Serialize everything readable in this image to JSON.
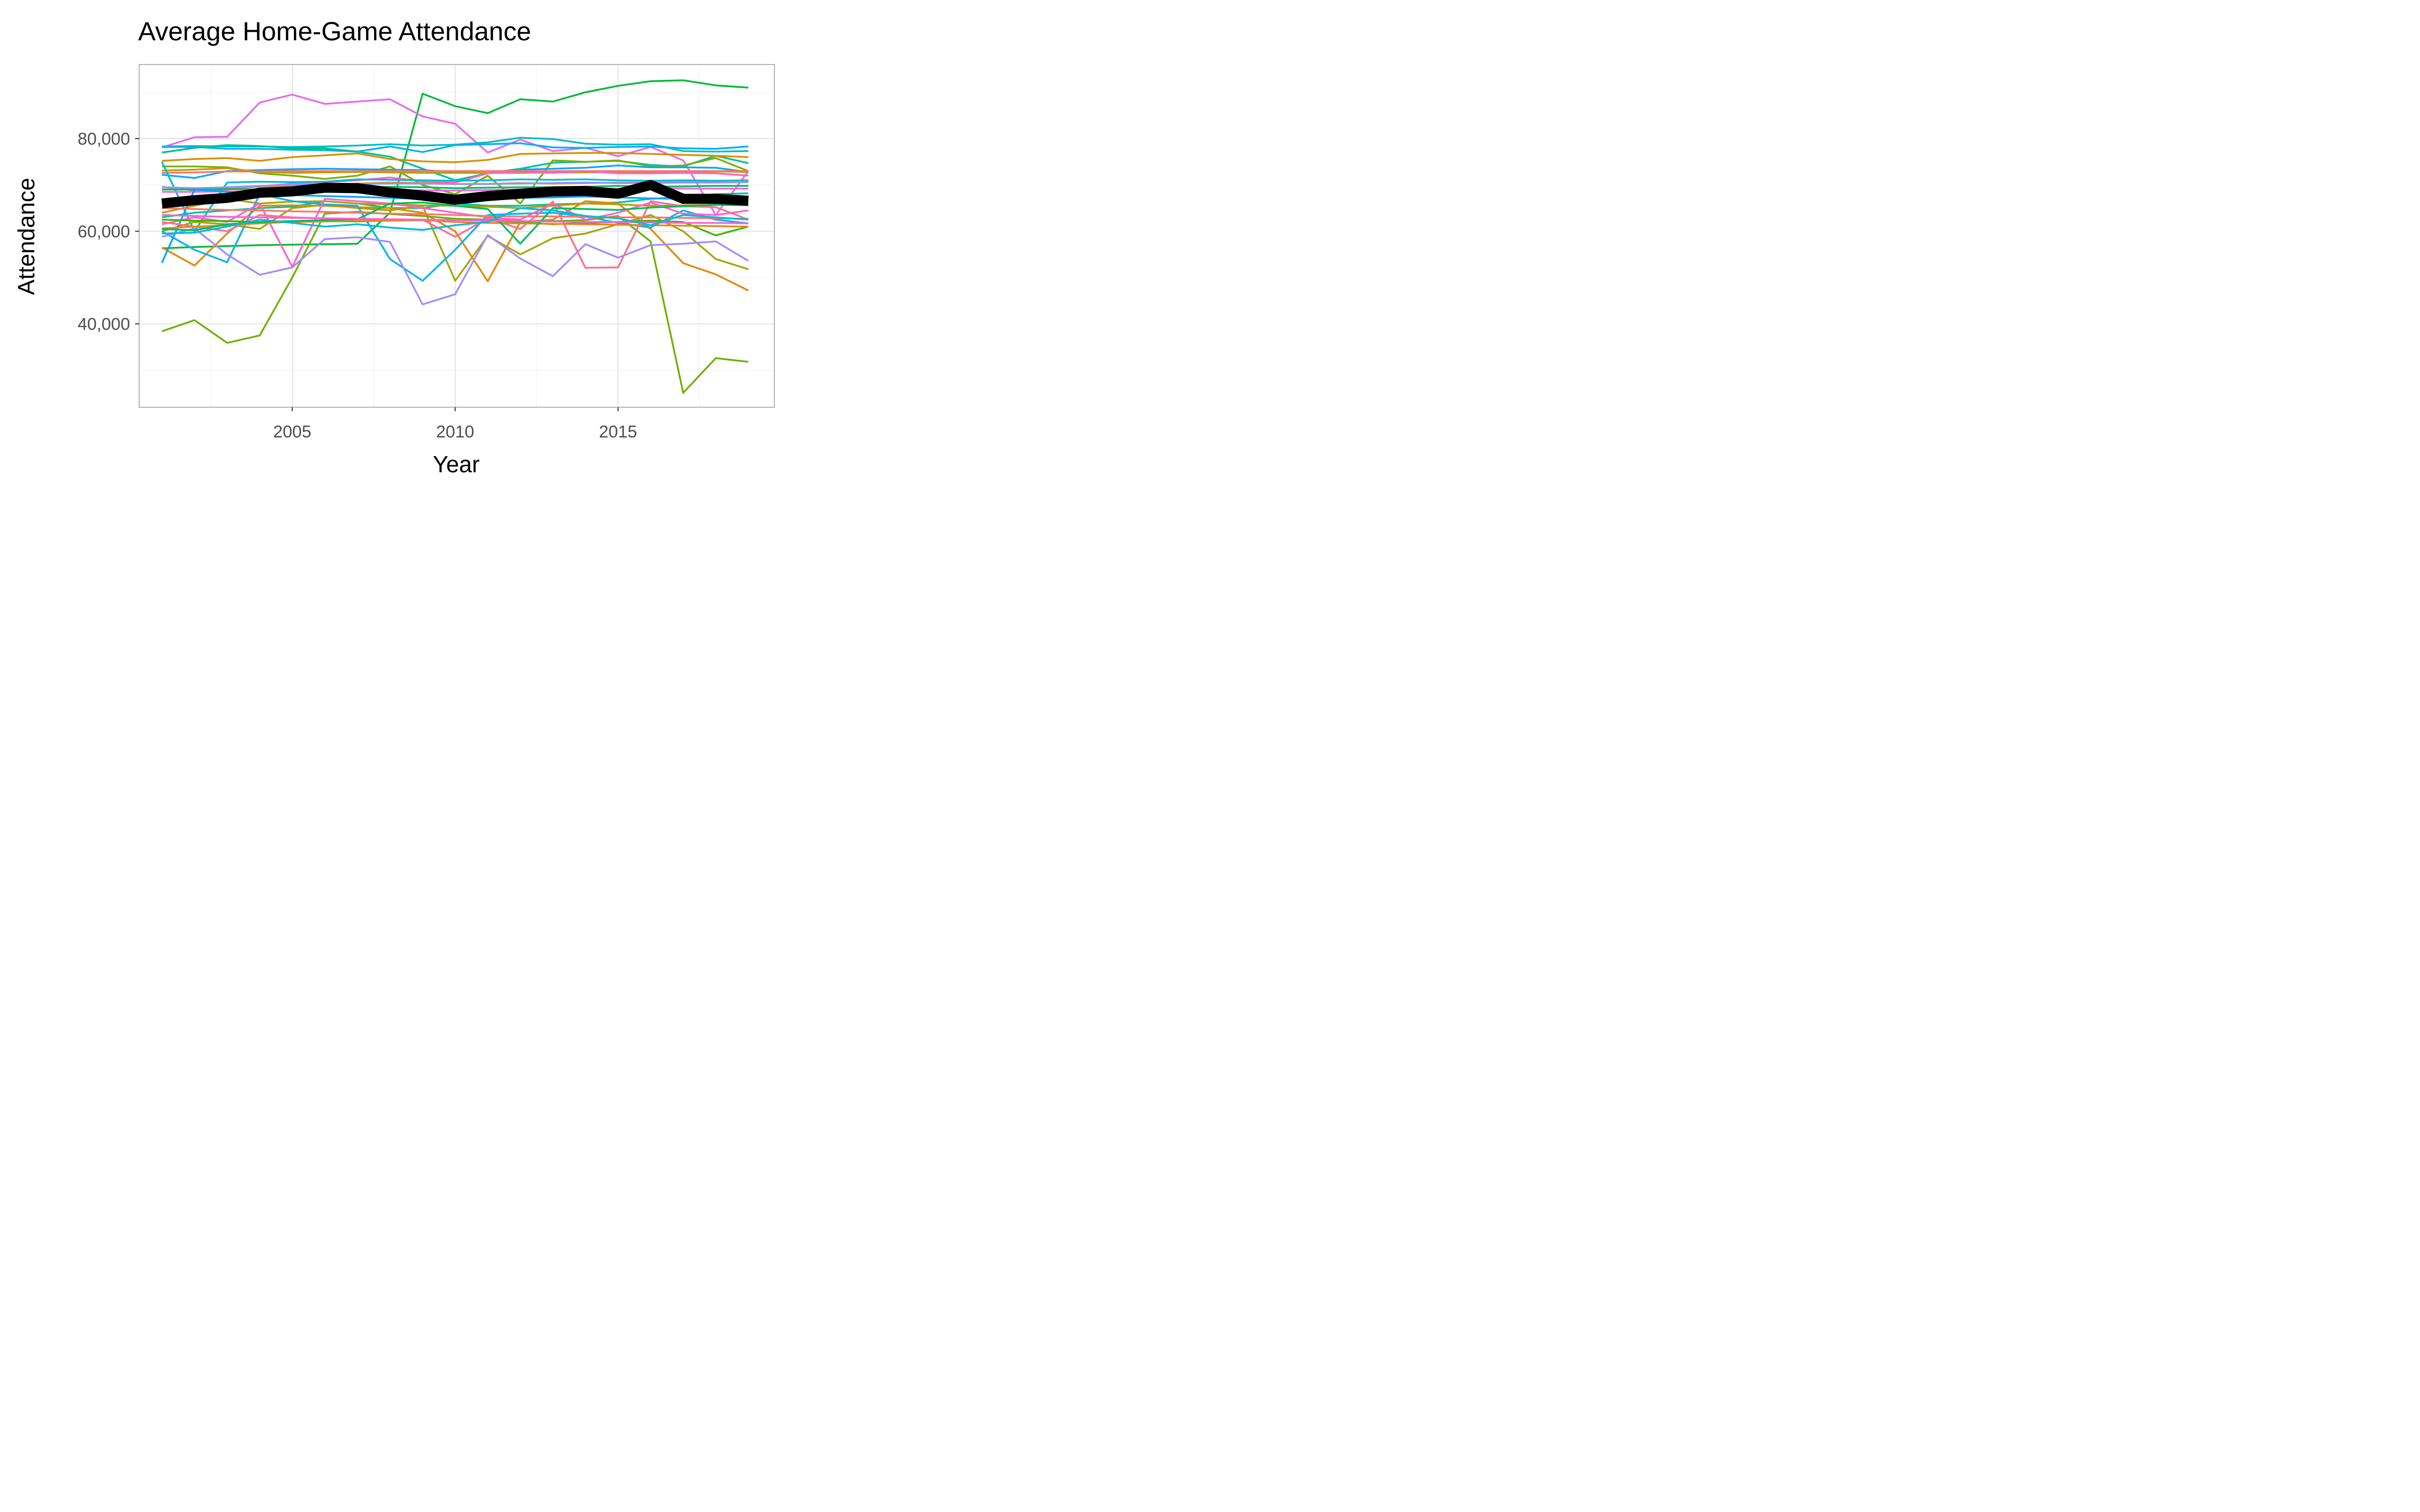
{
  "chart_data": {
    "type": "line",
    "title": "Average Home-Game Attendance",
    "xlabel": "Year",
    "ylabel": "Attendance",
    "xlim": [
      2000.3,
      2019.8
    ],
    "ylim": [
      22000,
      96000
    ],
    "x_ticks": [
      2005,
      2010,
      2015
    ],
    "y_ticks": [
      40000,
      60000,
      80000
    ],
    "y_tick_labels": [
      "40,000",
      "60,000",
      "80,000"
    ],
    "grid": true,
    "legend": "none",
    "colors": {
      "panel_border": "#b3b3b3",
      "grid_major": "#dcdcdc",
      "grid_minor": "#ededed",
      "average_line": "#000000"
    },
    "x": [
      2001,
      2002,
      2003,
      2004,
      2005,
      2006,
      2007,
      2008,
      2009,
      2010,
      2011,
      2012,
      2013,
      2014,
      2015,
      2016,
      2017,
      2018,
      2019
    ],
    "series": [
      {
        "color": "#00ba38",
        "values": [
          56300,
          56600,
          56800,
          57000,
          57100,
          57200,
          57300,
          64000,
          89700,
          87000,
          85500,
          88500,
          88000,
          90000,
          91400,
          92400,
          92600,
          91500,
          91000
        ]
      },
      {
        "color": "#e76bf3",
        "values": [
          78100,
          80300,
          80400,
          87800,
          89500,
          87500,
          88000,
          88500,
          84800,
          83200,
          77000,
          79800,
          77300,
          78000,
          76200,
          78200,
          75300,
          63500,
          73000
        ]
      },
      {
        "color": "#00bfc4",
        "values": [
          78300,
          78400,
          78300,
          78300,
          78200,
          78300,
          78500,
          78800,
          78500,
          78700,
          79200,
          80200,
          79900,
          78900,
          78700,
          78800,
          77300,
          77200,
          77300
        ]
      },
      {
        "color": "#00b0f6",
        "values": [
          78200,
          78200,
          77800,
          77800,
          77600,
          77500,
          77200,
          78300,
          77100,
          78600,
          78800,
          79000,
          78100,
          78000,
          78200,
          78300,
          77900,
          77800,
          78300
        ]
      },
      {
        "color": "#00c094",
        "values": [
          77000,
          78000,
          78600,
          78400,
          77900,
          77900,
          77200,
          76100,
          73500,
          71000,
          72500,
          73500,
          74800,
          75000,
          75200,
          74300,
          74000,
          76300,
          74700
        ]
      },
      {
        "color": "#d89000",
        "values": [
          75200,
          75600,
          75800,
          75200,
          76000,
          76400,
          76800,
          75600,
          75100,
          74900,
          75400,
          76700,
          76800,
          76900,
          76900,
          76700,
          76500,
          76300,
          76000
        ]
      },
      {
        "color": "#7cae00",
        "values": [
          74000,
          74000,
          73800,
          72500,
          72000,
          71300,
          72000,
          74000,
          70000,
          68000,
          72000,
          66000,
          75300,
          75000,
          75300,
          74000,
          74200,
          75800,
          73000
        ]
      },
      {
        "color": "#00a9ff",
        "values": [
          72200,
          71500,
          73000,
          73200,
          73400,
          73500,
          73400,
          73300,
          73200,
          72800,
          72500,
          73300,
          73500,
          73700,
          74200,
          73800,
          73800,
          73700,
          72800
        ]
      },
      {
        "color": "#c09b00",
        "values": [
          73100,
          73300,
          73600,
          72800,
          72600,
          72700,
          72800,
          72700,
          72600,
          72600,
          72600,
          72600,
          72700,
          72700,
          72800,
          72800,
          72800,
          72900,
          72800
        ]
      },
      {
        "color": "#f8766d",
        "values": [
          72600,
          72700,
          72900,
          72900,
          73000,
          73000,
          73000,
          73000,
          73000,
          73000,
          73000,
          73000,
          73000,
          73000,
          73000,
          73000,
          73000,
          73000,
          73000
        ]
      },
      {
        "color": "#ff61c3",
        "values": [
          69600,
          68800,
          69000,
          69700,
          70300,
          70600,
          71000,
          71600,
          70800,
          70500,
          72500,
          72900,
          72600,
          73000,
          72500,
          72500,
          72600,
          72500,
          72000
        ]
      },
      {
        "color": "#00bcd8",
        "values": [
          75000,
          60000,
          70500,
          70700,
          70600,
          70700,
          71200,
          71100,
          71000,
          70900,
          71000,
          71200,
          71100,
          71200,
          71000,
          70900,
          71000,
          70900,
          71000
        ]
      },
      {
        "color": "#e68613",
        "values": [
          69000,
          69200,
          69400,
          69600,
          69800,
          70000,
          70300,
          70500,
          70400,
          70200,
          70200,
          70400,
          70300,
          70400,
          70500,
          70500,
          70600,
          70600,
          70700
        ]
      },
      {
        "color": "#9590ff",
        "values": [
          69500,
          69300,
          69500,
          69800,
          70000,
          70100,
          70200,
          70300,
          70300,
          70200,
          70200,
          70300,
          70400,
          70500,
          70400,
          70400,
          70500,
          70500,
          70600
        ]
      },
      {
        "color": "#00be67",
        "values": [
          69000,
          69000,
          69100,
          69000,
          69200,
          69300,
          69400,
          69600,
          69500,
          69300,
          69400,
          69500,
          69500,
          69600,
          69800,
          69600,
          69700,
          69800,
          69800
        ]
      },
      {
        "color": "#f564e3",
        "values": [
          68500,
          68500,
          68600,
          68600,
          68700,
          68800,
          68800,
          68900,
          68800,
          68800,
          68900,
          69000,
          69100,
          69200,
          69200,
          69300,
          69200,
          69200,
          69200
        ]
      },
      {
        "color": "#00c1a3",
        "values": [
          63000,
          64000,
          64500,
          65000,
          65300,
          66500,
          66000,
          65000,
          65000,
          66000,
          65500,
          65500,
          65800,
          66000,
          66200,
          67000,
          67400,
          68000,
          68200
        ]
      },
      {
        "color": "#b79f00",
        "values": [
          64000,
          65500,
          67000,
          66000,
          66400,
          66500,
          66000,
          65800,
          65600,
          65500,
          65300,
          65000,
          65500,
          66000,
          65800,
          65500,
          65600,
          65700,
          65800
        ]
      },
      {
        "color": "#a3a500",
        "values": [
          60000,
          62000,
          61500,
          60500,
          65000,
          65700,
          65000,
          64500,
          65500,
          49300,
          59000,
          55000,
          58500,
          59500,
          61500,
          63500,
          60000,
          54000,
          51800
        ]
      },
      {
        "color": "#e58700",
        "values": [
          56500,
          52600,
          59500,
          65500,
          65600,
          65500,
          65200,
          65000,
          64000,
          60000,
          49200,
          62000,
          62500,
          66500,
          66000,
          60500,
          53100,
          50700,
          47200
        ]
      },
      {
        "color": "#00b4f0",
        "values": [
          60000,
          56000,
          53300,
          68000,
          66500,
          65800,
          65500,
          54000,
          49300,
          56000,
          63500,
          63800,
          64000,
          63200,
          61800,
          60800,
          64500,
          62500,
          61700
        ]
      },
      {
        "color": "#6bb100",
        "values": [
          38400,
          40800,
          35900,
          37500,
          50000,
          63800,
          64200,
          63700,
          63300,
          62700,
          62500,
          62200,
          62200,
          62400,
          63300,
          57800,
          25100,
          32600,
          31800
        ]
      },
      {
        "color": "#a58aff",
        "values": [
          58800,
          60600,
          55000,
          50600,
          52200,
          58300,
          58700,
          57700,
          44200,
          46400,
          59200,
          54100,
          50300,
          57200,
          54300,
          57000,
          57300,
          57800,
          53600
        ]
      },
      {
        "color": "#00a5ff",
        "values": [
          53200,
          69000,
          68500,
          68000,
          67800,
          67600,
          67400,
          67200,
          67000,
          66800,
          67000,
          67200,
          67300,
          67500,
          67300,
          67100,
          67000,
          66900,
          66800
        ]
      },
      {
        "color": "#fd61d1",
        "values": [
          61500,
          63000,
          62000,
          66000,
          52300,
          67000,
          66500,
          66000,
          65000,
          64000,
          63000,
          62500,
          66000,
          62500,
          64000,
          66200,
          63800,
          63500,
          64500
        ]
      },
      {
        "color": "#ff6c91",
        "values": [
          62000,
          61000,
          60000,
          63500,
          63000,
          62800,
          62600,
          62400,
          62500,
          58800,
          62800,
          60500,
          66400,
          52100,
          52200,
          66500,
          65400,
          65200,
          62500
        ]
      },
      {
        "color": "#f8766d",
        "values": [
          65000,
          64800,
          64600,
          64500,
          64300,
          64200,
          64000,
          63800,
          63700,
          63500,
          63300,
          63200,
          63200,
          63100,
          63000,
          63000,
          62900,
          62800,
          62700
        ]
      },
      {
        "color": "#39b600",
        "values": [
          62500,
          62300,
          62200,
          62000,
          62100,
          62200,
          62100,
          62300,
          62400,
          62500,
          62300,
          62000,
          61500,
          61800,
          62000,
          62300,
          62000,
          59100,
          61000
        ]
      },
      {
        "color": "#e7861b",
        "values": [
          60600,
          61000,
          61300,
          61700,
          62000,
          62100,
          62200,
          62300,
          62400,
          62000,
          61800,
          61700,
          61600,
          61500,
          61400,
          61300,
          61200,
          61100,
          61000
        ]
      },
      {
        "color": "#00bd5c",
        "values": [
          60500,
          60200,
          61500,
          62000,
          62200,
          62400,
          62600,
          66000,
          66200,
          65500,
          64800,
          57300,
          65000,
          64800,
          64600,
          65100,
          65400,
          65700,
          65600
        ]
      },
      {
        "color": "#fb61d7",
        "values": [
          63500,
          63300,
          63100,
          63000,
          62900,
          62800,
          62700,
          62600,
          62500,
          62400,
          62300,
          62200,
          62100,
          62000,
          62000,
          61900,
          61800,
          61800,
          61700
        ]
      },
      {
        "color": "#00bbdb",
        "values": [
          59500,
          59700,
          61000,
          62500,
          61800,
          61000,
          61500,
          60800,
          60300,
          61300,
          62000,
          65000,
          64500,
          63300,
          62800,
          61300,
          63500,
          63000,
          62500
        ]
      }
    ],
    "average": {
      "color": "#000000",
      "values": [
        66000,
        66700,
        67200,
        68300,
        68600,
        69400,
        69300,
        68400,
        67700,
        66800,
        67600,
        68100,
        68600,
        68700,
        68100,
        70000,
        67000,
        67000,
        66600
      ]
    }
  }
}
